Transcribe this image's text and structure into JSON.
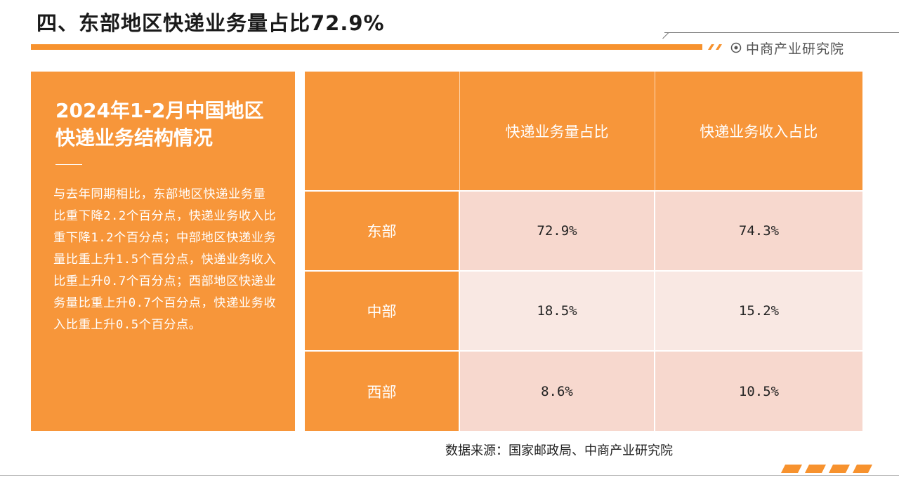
{
  "page": {
    "title": "四、东部地区快递业务量占比72.9%",
    "brand": {
      "name": "中商产业研究院",
      "icon": "target-icon"
    }
  },
  "panel": {
    "heading": "2024年1-2月中国地区快递业务结构情况",
    "body": "与去年同期相比，东部地区快递业务量比重下降2.2个百分点，快递业务收入比重下降1.2个百分点；中部地区快递业务量比重上升1.5个百分点，快递业务收入比重上升0.7个百分点；西部地区快递业务量比重上升0.7个百分点，快递业务收入比重上升0.5个百分点。"
  },
  "table": {
    "headers": [
      "",
      "快递业务量占比",
      "快递业务收入占比"
    ],
    "rows": [
      {
        "region": "东部",
        "volume_share": "72.9%",
        "revenue_share": "74.3%"
      },
      {
        "region": "中部",
        "volume_share": "18.5%",
        "revenue_share": "15.2%"
      },
      {
        "region": "西部",
        "volume_share": "8.6%",
        "revenue_share": "10.5%"
      }
    ]
  },
  "source": "数据来源：国家邮政局、中商产业研究院",
  "colors": {
    "accent": "#f7963a",
    "row_dark": "#f7d8ce",
    "row_light": "#f9e8e3"
  }
}
